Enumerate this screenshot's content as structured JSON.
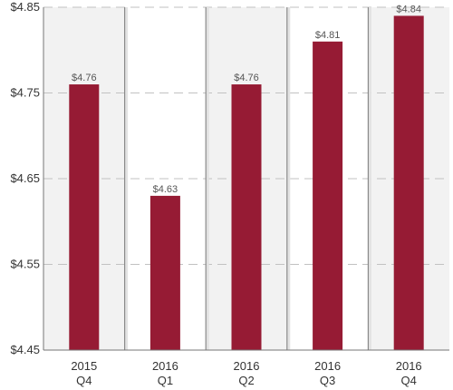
{
  "chart_data": {
    "type": "bar",
    "categories": [
      [
        "2015",
        "Q4"
      ],
      [
        "2016",
        "Q1"
      ],
      [
        "2016",
        "Q2"
      ],
      [
        "2016",
        "Q3"
      ],
      [
        "2016",
        "Q4"
      ]
    ],
    "values": [
      4.76,
      4.63,
      4.76,
      4.81,
      4.84
    ],
    "data_labels": [
      "$4.76",
      "$4.63",
      "$4.76",
      "$4.81",
      "$4.84"
    ],
    "y_ticks": [
      4.45,
      4.55,
      4.65,
      4.75,
      4.85
    ],
    "y_tick_labels": [
      "$4.45",
      "$4.55",
      "$4.65",
      "$4.75",
      "$4.85"
    ],
    "ylim": [
      4.45,
      4.85
    ],
    "grid": "horizontal-dashed",
    "bar_color": "#961b34",
    "band_color": "#f2f2f2"
  }
}
